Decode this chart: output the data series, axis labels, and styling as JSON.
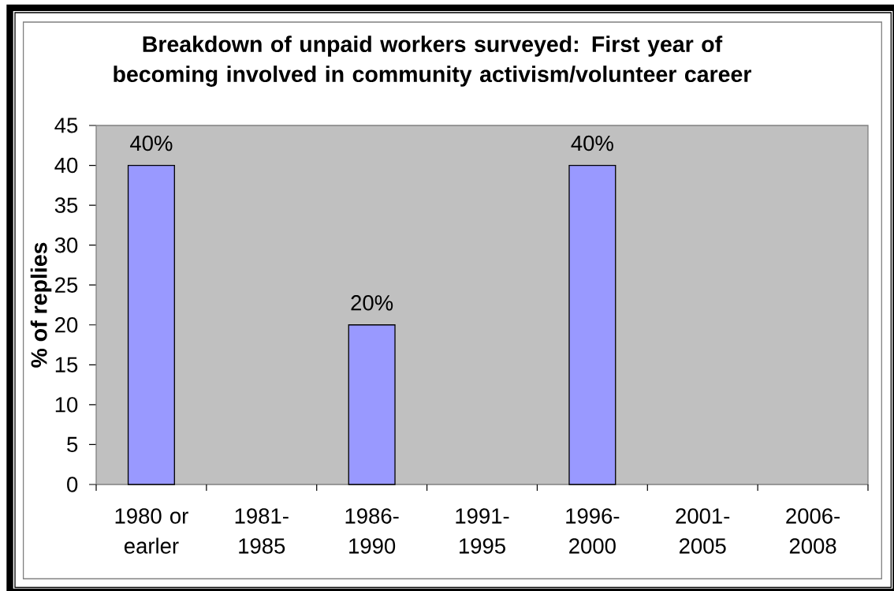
{
  "chart_data": {
    "type": "bar",
    "title": "Breakdown of unpaid workers surveyed: First year of becoming involved in community activism/volunteer career",
    "ylabel": "% of replies",
    "categories": [
      "1980 or earler",
      "1981-1985",
      "1986-1990",
      "1991-1995",
      "1996-2000",
      "2001-2005",
      "2006-2008"
    ],
    "values": [
      40,
      null,
      20,
      null,
      40,
      null,
      null
    ],
    "color": "#9999ff",
    "value_labels": [
      "40%",
      null,
      "20%",
      null,
      "40%",
      null,
      null
    ],
    "ylim": [
      0,
      45
    ],
    "yticks": [
      0,
      5,
      10,
      15,
      20,
      25,
      30,
      35,
      40,
      45
    ]
  }
}
